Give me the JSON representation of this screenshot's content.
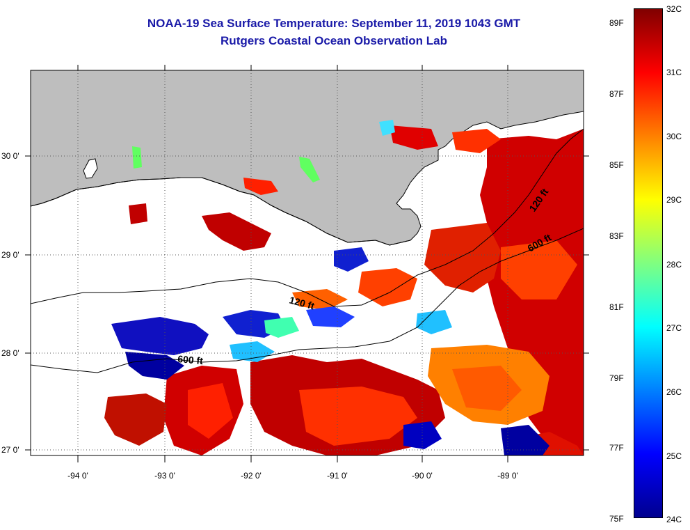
{
  "title": {
    "line1": "NOAA-19 Sea Surface Temperature:  September 11, 2019 1043 GMT",
    "line2": "Rutgers Coastal Ocean Observation Lab"
  },
  "colors": {
    "title": "#1a1aa8",
    "land": "#bebebe",
    "background": "#ffffff"
  },
  "map": {
    "lat_labels": [
      "30 0'",
      "29 0'",
      "28 0'",
      "27 0'"
    ],
    "lon_labels": [
      "-94 0'",
      "-93 0'",
      "-92 0'",
      "-91 0'",
      "-90 0'",
      "-89 0'"
    ],
    "contour_labels": [
      "120 ft",
      "600 ft",
      "120 ft",
      "600 ft"
    ]
  },
  "colorbar": {
    "fahrenheit": [
      "89F",
      "87F",
      "85F",
      "83F",
      "81F",
      "79F",
      "77F",
      "75F"
    ],
    "celsius": [
      "32C",
      "31C",
      "30C",
      "29C",
      "28C",
      "27C",
      "26C",
      "25C",
      "24C"
    ],
    "min_c": 24,
    "max_c": 32,
    "gradient": [
      "#00008f",
      "#0000ff",
      "#0080ff",
      "#00ffff",
      "#80ff80",
      "#ffff00",
      "#ff8000",
      "#ff0000",
      "#800000"
    ]
  }
}
